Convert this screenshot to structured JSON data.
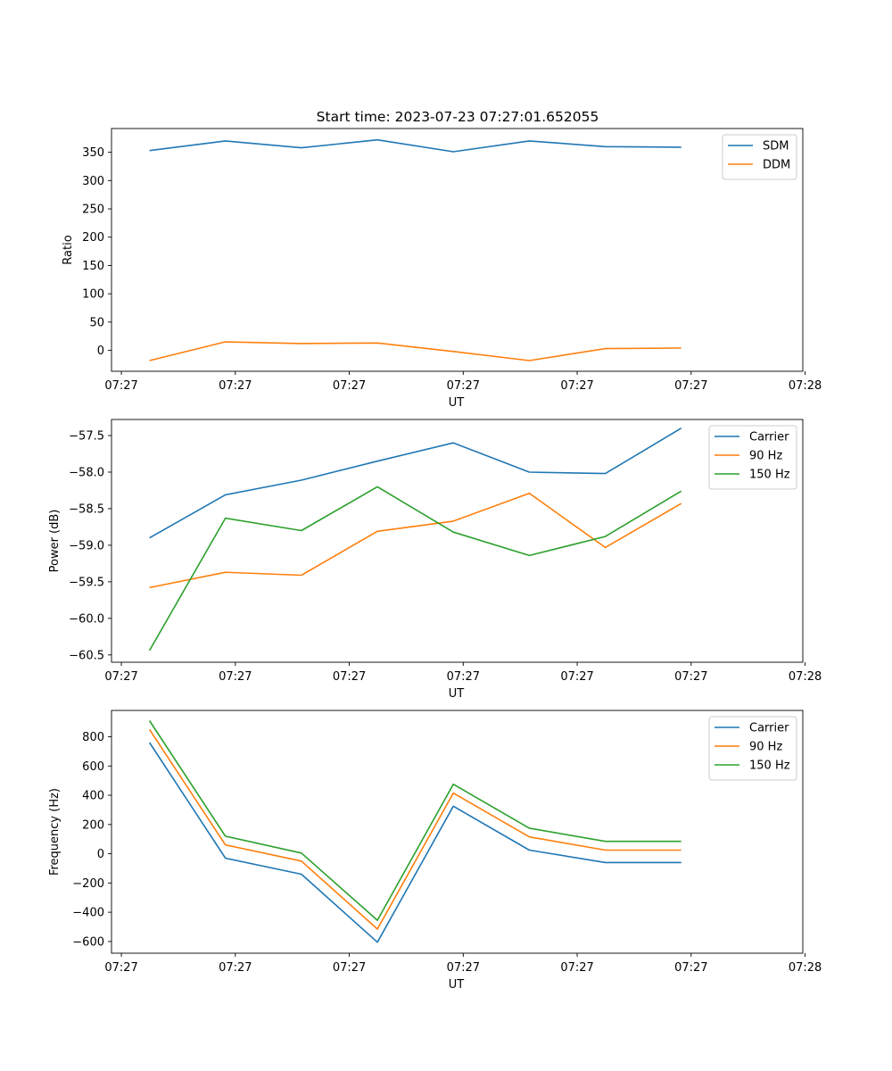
{
  "title": "Start time: 2023-07-23 07:27:01.652055",
  "chart_data": [
    {
      "type": "line",
      "title": "Start time: 2023-07-23 07:27:01.652055",
      "xlabel": "UT",
      "ylabel": "Ratio",
      "xlim": [
        0,
        9.1
      ],
      "x": [
        0.5,
        1.5,
        2.5,
        3.5,
        4.5,
        5.5,
        6.5,
        7.5
      ],
      "xticks": [
        0.13,
        1.63,
        3.13,
        4.63,
        6.13,
        7.63,
        9.13
      ],
      "xticklabels": [
        "07:27",
        "07:27",
        "07:27",
        "07:27",
        "07:27",
        "07:27",
        "07:28"
      ],
      "ylim": [
        -37,
        392
      ],
      "yticks": [
        0,
        50,
        100,
        150,
        200,
        250,
        300,
        350
      ],
      "yticklabels": [
        "0",
        "50",
        "100",
        "150",
        "200",
        "250",
        "300",
        "350"
      ],
      "legend_position": "top-right",
      "series": [
        {
          "name": "SDM",
          "color": "#1f77b4",
          "values": [
            353,
            370,
            358,
            372,
            351,
            370,
            360,
            359
          ]
        },
        {
          "name": "DDM",
          "color": "#ff7f0e",
          "values": [
            -18,
            15,
            12,
            13,
            -2,
            -18,
            3,
            4
          ]
        }
      ]
    },
    {
      "type": "line",
      "title": "",
      "xlabel": "UT",
      "ylabel": "Power (dB)",
      "xlim": [
        0,
        9.1
      ],
      "x": [
        0.5,
        1.5,
        2.5,
        3.5,
        4.5,
        5.5,
        6.5,
        7.5
      ],
      "xticks": [
        0.13,
        1.63,
        3.13,
        4.63,
        6.13,
        7.63,
        9.13
      ],
      "xticklabels": [
        "07:27",
        "07:27",
        "07:27",
        "07:27",
        "07:27",
        "07:27",
        "07:28"
      ],
      "ylim": [
        -60.6,
        -57.28
      ],
      "yticks": [
        -60.5,
        -60.0,
        -59.5,
        -59.0,
        -58.5,
        -58.0,
        -57.5
      ],
      "yticklabels": [
        "−60.5",
        "−60.0",
        "−59.5",
        "−59.0",
        "−58.5",
        "−58.0",
        "−57.5"
      ],
      "legend_position": "top-right",
      "series": [
        {
          "name": "Carrier",
          "color": "#1f77b4",
          "values": [
            -58.9,
            -58.31,
            -58.11,
            -57.85,
            -57.6,
            -58.0,
            -58.02,
            -57.4
          ]
        },
        {
          "name": "90 Hz",
          "color": "#ff7f0e",
          "values": [
            -59.58,
            -59.37,
            -59.41,
            -58.81,
            -58.67,
            -58.29,
            -59.03,
            -58.43
          ]
        },
        {
          "name": "150 Hz",
          "color": "#2ca02c",
          "values": [
            -60.44,
            -58.63,
            -58.8,
            -58.2,
            -58.82,
            -59.14,
            -58.88,
            -58.26
          ]
        }
      ]
    },
    {
      "type": "line",
      "title": "",
      "xlabel": "UT",
      "ylabel": "Frequency (Hz)",
      "xlim": [
        0,
        9.1
      ],
      "x": [
        0.5,
        1.5,
        2.5,
        3.5,
        4.5,
        5.5,
        6.5,
        7.5
      ],
      "xticks": [
        0.13,
        1.63,
        3.13,
        4.63,
        6.13,
        7.63,
        9.13
      ],
      "xticklabels": [
        "07:27",
        "07:27",
        "07:27",
        "07:27",
        "07:27",
        "07:27",
        "07:28"
      ],
      "ylim": [
        -680,
        980
      ],
      "yticks": [
        -600,
        -400,
        -200,
        0,
        200,
        400,
        600,
        800
      ],
      "yticklabels": [
        "−600",
        "−400",
        "−200",
        "0",
        "200",
        "400",
        "600",
        "800"
      ],
      "legend_position": "top-right",
      "series": [
        {
          "name": "Carrier",
          "color": "#1f77b4",
          "values": [
            760,
            -30,
            -140,
            -605,
            325,
            25,
            -60,
            -60
          ]
        },
        {
          "name": "90 Hz",
          "color": "#ff7f0e",
          "values": [
            850,
            60,
            -50,
            -515,
            415,
            115,
            25,
            25
          ]
        },
        {
          "name": "150 Hz",
          "color": "#2ca02c",
          "values": [
            910,
            120,
            5,
            -455,
            475,
            175,
            85,
            85
          ]
        }
      ]
    }
  ]
}
